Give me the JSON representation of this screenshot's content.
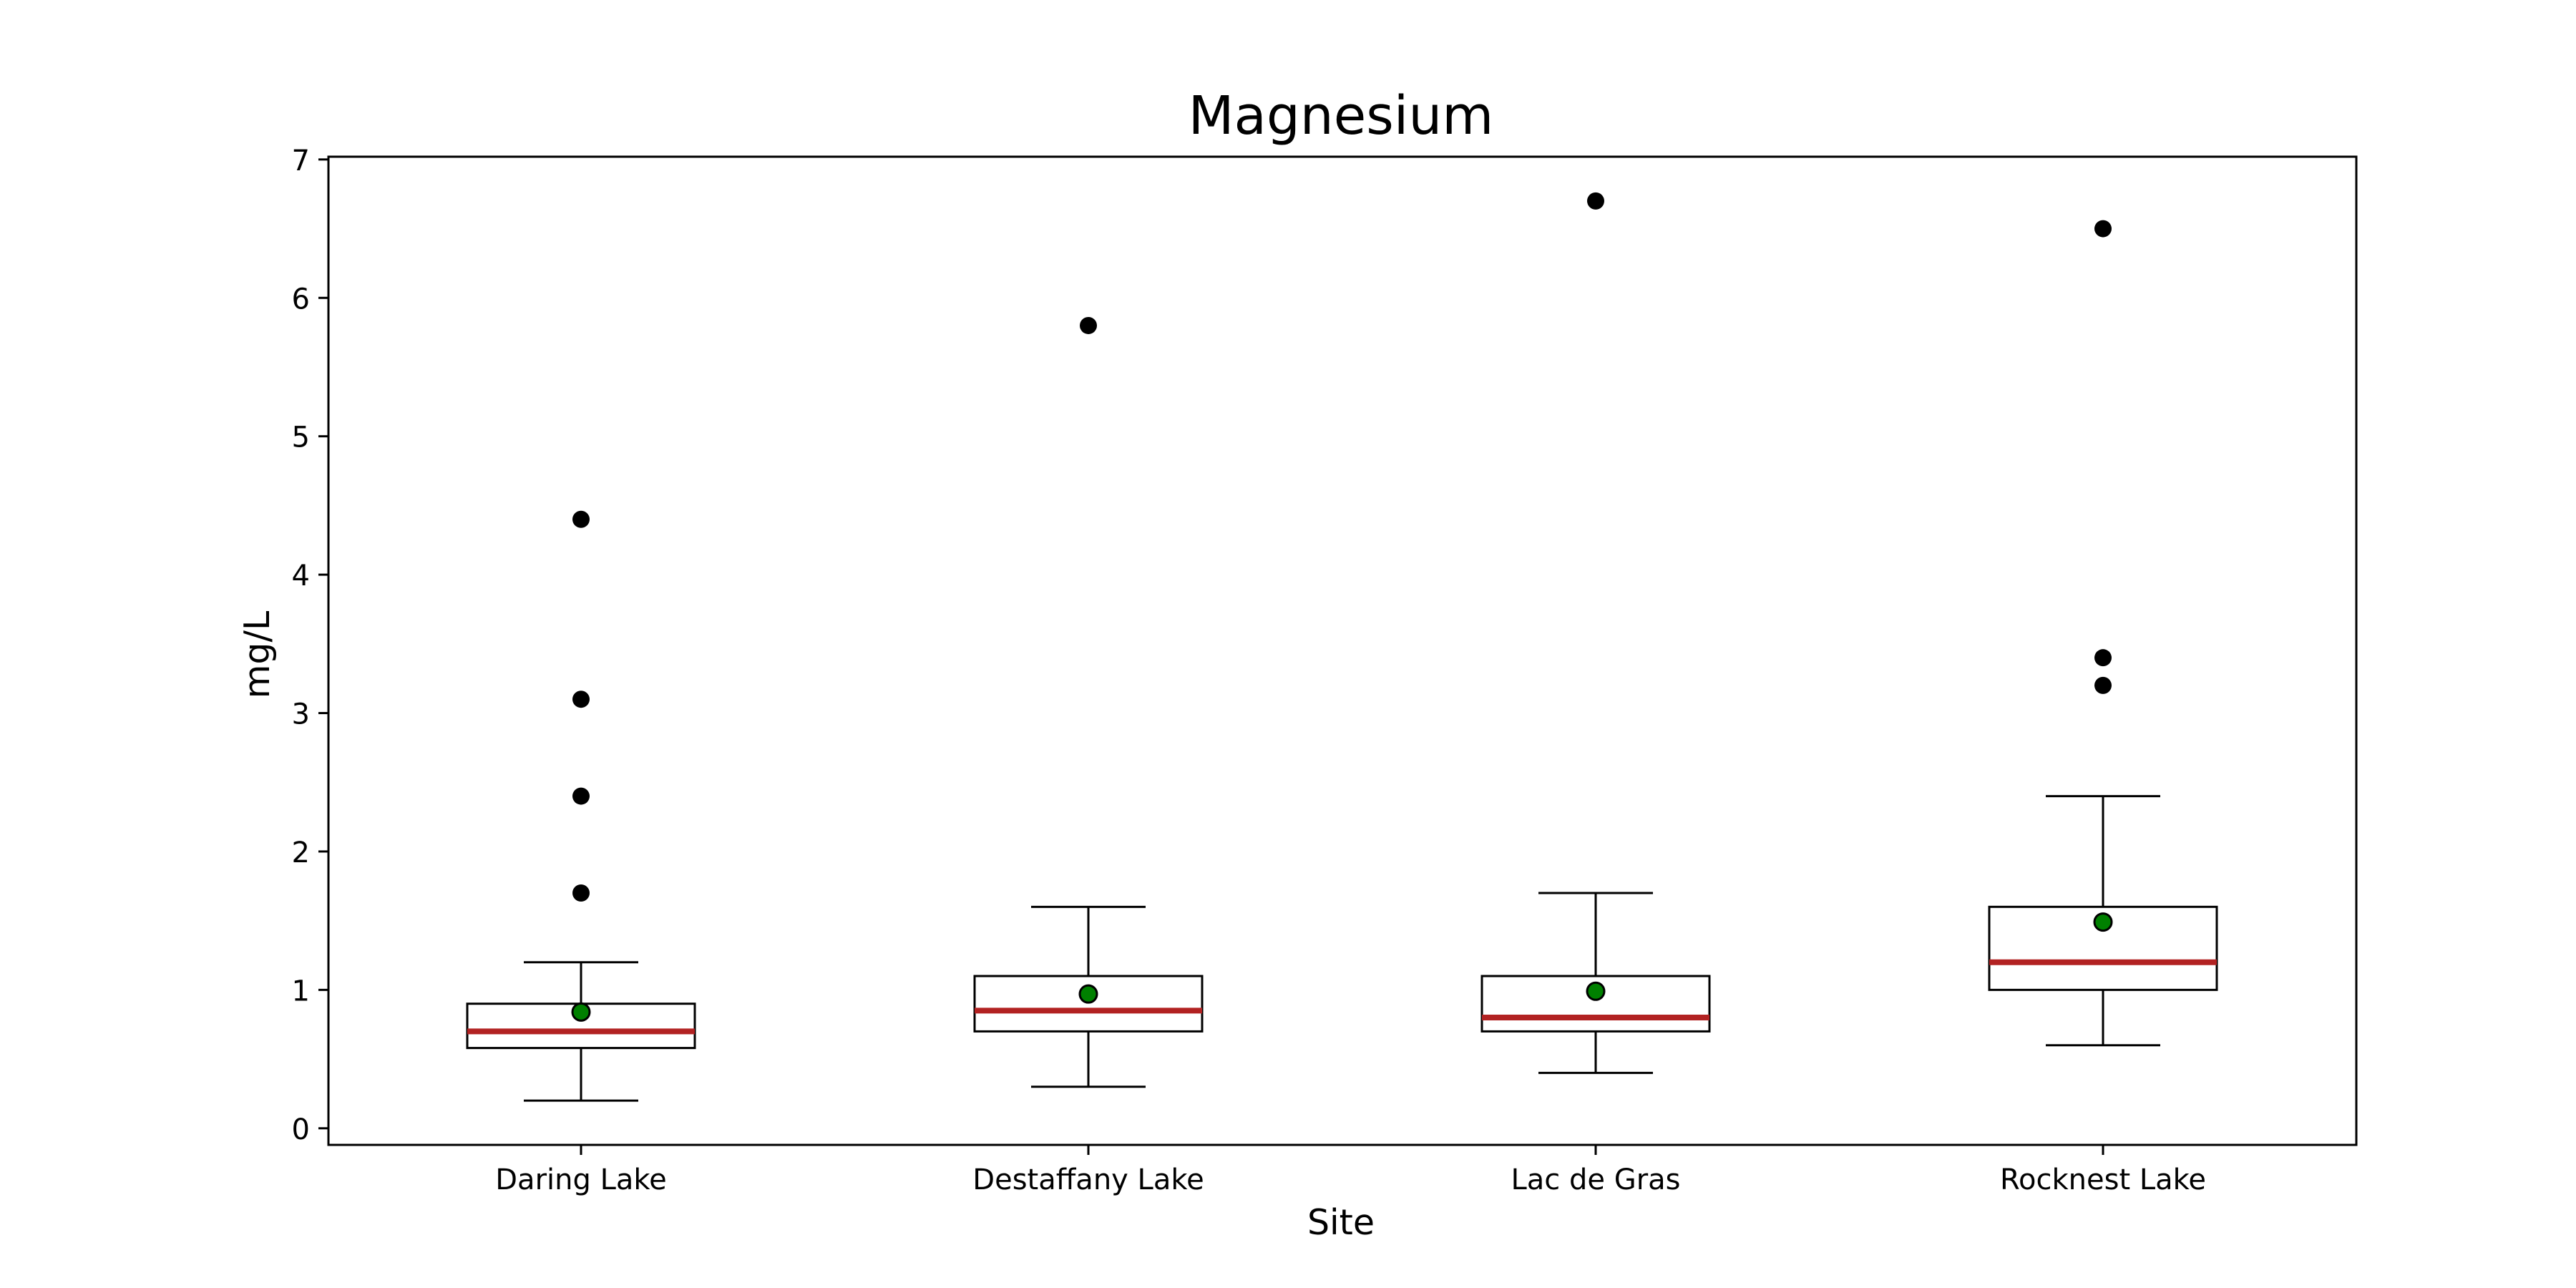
{
  "chart_data": {
    "type": "box",
    "title": "Magnesium",
    "xlabel": "Site",
    "ylabel": "mg/L",
    "ylim": [
      -0.12,
      7.02
    ],
    "yticks": [
      0,
      1,
      2,
      3,
      4,
      5,
      6,
      7
    ],
    "grid": false,
    "colors": {
      "box_edge": "#000000",
      "median": "#b22222",
      "mean_marker": "#008000",
      "outlier": "#000000"
    },
    "categories": [
      "Daring Lake",
      "Destaffany Lake",
      "Lac de Gras",
      "Rocknest Lake"
    ],
    "boxes": [
      {
        "whisker_low": 0.2,
        "q1": 0.58,
        "median": 0.7,
        "q3": 0.9,
        "whisker_high": 1.2,
        "mean": 0.84,
        "outliers": [
          1.7,
          2.4,
          3.1,
          4.4
        ]
      },
      {
        "whisker_low": 0.3,
        "q1": 0.7,
        "median": 0.85,
        "q3": 1.1,
        "whisker_high": 1.6,
        "mean": 0.97,
        "outliers": [
          5.8
        ]
      },
      {
        "whisker_low": 0.4,
        "q1": 0.7,
        "median": 0.8,
        "q3": 1.1,
        "whisker_high": 1.7,
        "mean": 0.99,
        "outliers": [
          6.7
        ]
      },
      {
        "whisker_low": 0.6,
        "q1": 1.0,
        "median": 1.2,
        "q3": 1.6,
        "whisker_high": 2.4,
        "mean": 1.49,
        "outliers": [
          3.2,
          3.4,
          6.5
        ]
      }
    ]
  }
}
